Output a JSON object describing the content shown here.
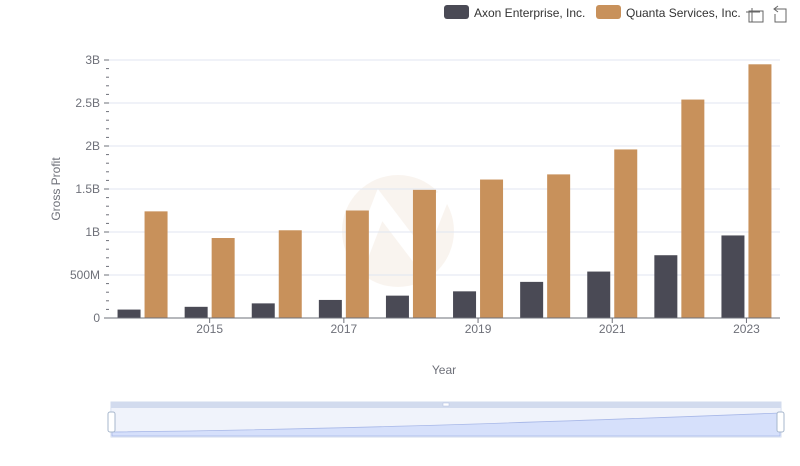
{
  "chart_data": {
    "type": "bar",
    "title": "",
    "xlabel": "Year",
    "ylabel": "Gross Profit",
    "categories": [
      "2014",
      "2015",
      "2016",
      "2017",
      "2018",
      "2019",
      "2020",
      "2021",
      "2022",
      "2023"
    ],
    "x_tick_labels": [
      "2015",
      "2017",
      "2019",
      "2021",
      "2023"
    ],
    "y_tick_labels": [
      "0",
      "500M",
      "1B",
      "1.5B",
      "2B",
      "2.5B",
      "3B"
    ],
    "ylim": [
      0,
      3000000000
    ],
    "grid": true,
    "legend_position": "top-right",
    "series": [
      {
        "name": "Axon Enterprise, Inc.",
        "color": "#4a4a55",
        "values": [
          98000000,
          130000000,
          170000000,
          210000000,
          260000000,
          310000000,
          420000000,
          540000000,
          730000000,
          960000000
        ]
      },
      {
        "name": "Quanta Services, Inc.",
        "color": "#c8915b",
        "values": [
          1240000000,
          930000000,
          1020000000,
          1250000000,
          1490000000,
          1610000000,
          1670000000,
          1960000000,
          2540000000,
          2950000000
        ]
      }
    ]
  },
  "toolbox": {
    "zoom_icon": "zoom-icon",
    "restore_icon": "restore-icon"
  }
}
